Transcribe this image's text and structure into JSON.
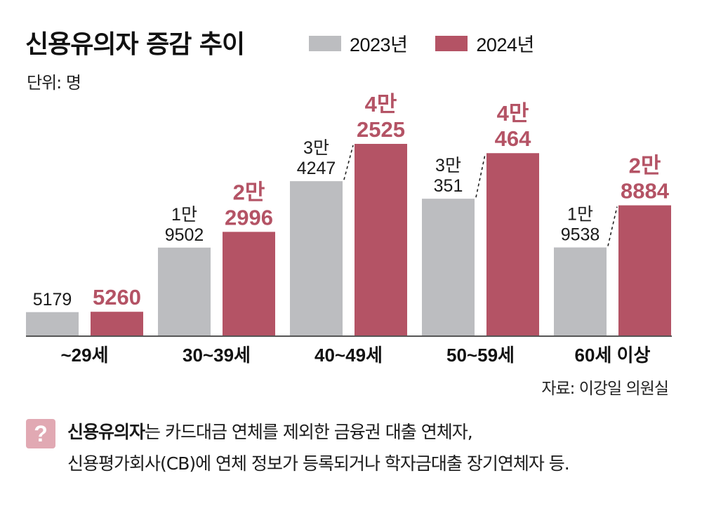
{
  "title": "신용유의자 증감 추이",
  "unit": "단위: 명",
  "source": "자료: 이강일 의원실",
  "note": {
    "icon": "question-mark-icon",
    "icon_text": "?",
    "bold_term": "신용유의자",
    "line1_rest": "는 카드대금 연체를 제외한 금융권 대출 연체자,",
    "line2": "신용평가회사(CB)에 연체 정보가 등록되거나 학자금대출 장기연체자 등."
  },
  "colors": {
    "y2023": "#bcbdc0",
    "y2024": "#b45365",
    "label2024": "#b45365",
    "axis": "#555555"
  },
  "chart_data": {
    "type": "bar",
    "title": "신용유의자 증감 추이",
    "ylabel": "단위: 명",
    "xlabel": "",
    "ylim": [
      0,
      46000
    ],
    "grid": false,
    "legend_position": "top",
    "categories": [
      "~29세",
      "30~39세",
      "40~49세",
      "50~59세",
      "60세 이상"
    ],
    "series": [
      {
        "name": "2023년",
        "values": [
          5179,
          19502,
          34247,
          30351,
          19538
        ],
        "labels": [
          [
            "5179"
          ],
          [
            "1만",
            "9502"
          ],
          [
            "3만",
            "4247"
          ],
          [
            "3만",
            "351"
          ],
          [
            "1만",
            "9538"
          ]
        ]
      },
      {
        "name": "2024년",
        "values": [
          5260,
          22996,
          42525,
          40464,
          28884
        ],
        "labels": [
          [
            "5260"
          ],
          [
            "2만",
            "2996"
          ],
          [
            "4만",
            "2525"
          ],
          [
            "4만",
            "464"
          ],
          [
            "2만",
            "8884"
          ]
        ]
      }
    ],
    "connectors": [
      false,
      false,
      true,
      true,
      true
    ]
  }
}
